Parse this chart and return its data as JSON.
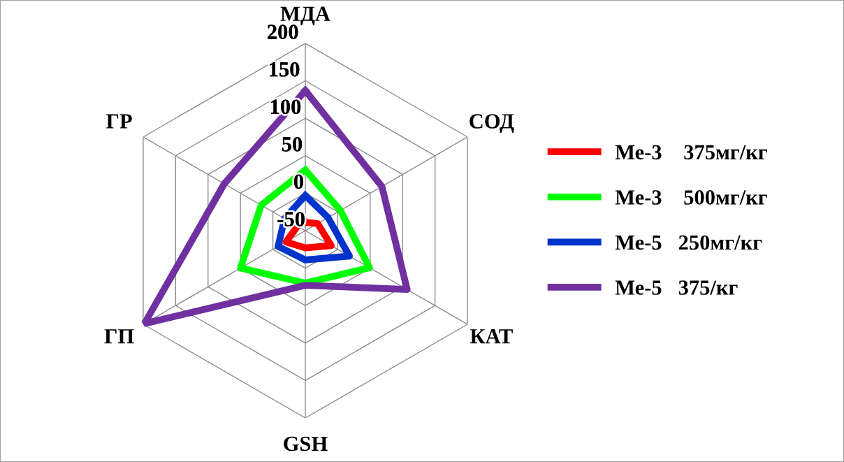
{
  "chart_data": {
    "type": "radar",
    "categories": [
      "МДА",
      "СОД",
      "КАТ",
      "GSH",
      "ГП",
      "ГР"
    ],
    "ylim": [
      -50,
      200
    ],
    "yticks": [
      -50,
      0,
      50,
      100,
      150,
      200
    ],
    "grid": true,
    "legend": "right",
    "series": [
      {
        "name": "Ме-3    375мг/кг",
        "color": "#ff0000",
        "values": [
          -39,
          -31,
          -10,
          -27,
          -20,
          -38
        ]
      },
      {
        "name": "Ме-3    500мг/кг",
        "color": "#00ff00",
        "values": [
          31,
          4,
          49,
          20,
          50,
          18
        ]
      },
      {
        "name": "Ме-5   250мг/кг",
        "color": "#0033cc",
        "values": [
          -3,
          -15,
          18,
          -11,
          -8,
          -18
        ]
      },
      {
        "name": "Ме-5   375/кг",
        "color": "#7030a0",
        "values": [
          137,
          68,
          107,
          23,
          198,
          75
        ]
      }
    ]
  }
}
